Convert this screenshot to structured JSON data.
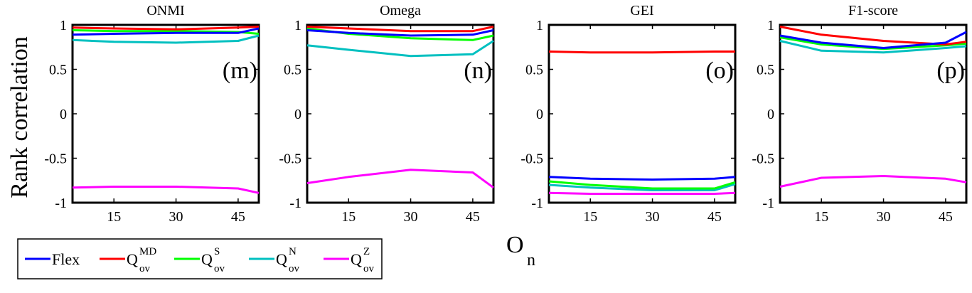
{
  "figure": {
    "ylabel": "Rank correlation",
    "xlabel_main": "O",
    "xlabel_sub": "n"
  },
  "legend": {
    "items": [
      {
        "label": "Flex",
        "sup": "",
        "sub": "",
        "color": "#0000ff"
      },
      {
        "label": "Q",
        "sup": "MD",
        "sub": "ov",
        "color": "#ff0000"
      },
      {
        "label": "Q",
        "sup": "S",
        "sub": "ov",
        "color": "#00ff00"
      },
      {
        "label": "Q",
        "sup": "N",
        "sub": "ov",
        "color": "#00c0c0"
      },
      {
        "label": "Q",
        "sup": "Z",
        "sub": "ov",
        "color": "#ff00ff"
      }
    ]
  },
  "chart_data": [
    {
      "type": "line",
      "title": "ONMI",
      "panel_label": "(m)",
      "x": [
        5,
        15,
        30,
        45,
        50
      ],
      "xticks": [
        "15",
        "30",
        "45"
      ],
      "yticks": [
        "1",
        "0.5",
        "0",
        "-0.5",
        "-1"
      ],
      "xlim": [
        5,
        50
      ],
      "ylim": [
        -1,
        1
      ],
      "series": [
        {
          "name": "Flex",
          "values": [
            0.89,
            0.9,
            0.91,
            0.91,
            0.96
          ]
        },
        {
          "name": "Q_ov^MD",
          "values": [
            0.97,
            0.96,
            0.95,
            0.97,
            0.98
          ]
        },
        {
          "name": "Q_ov^S",
          "values": [
            0.94,
            0.93,
            0.93,
            0.92,
            0.9
          ]
        },
        {
          "name": "Q_ov^N",
          "values": [
            0.83,
            0.81,
            0.8,
            0.82,
            0.88
          ]
        },
        {
          "name": "Q_ov^Z",
          "values": [
            -0.83,
            -0.82,
            -0.82,
            -0.84,
            -0.89
          ]
        }
      ]
    },
    {
      "type": "line",
      "title": "Omega",
      "panel_label": "(n)",
      "x": [
        5,
        15,
        30,
        45,
        50
      ],
      "xticks": [
        "15",
        "30",
        "45"
      ],
      "yticks": [
        "1",
        "0.5",
        "0",
        "-0.5",
        "-1"
      ],
      "xlim": [
        5,
        50
      ],
      "ylim": [
        -1,
        1
      ],
      "series": [
        {
          "name": "Flex",
          "values": [
            0.94,
            0.91,
            0.88,
            0.89,
            0.94
          ]
        },
        {
          "name": "Q_ov^MD",
          "values": [
            0.98,
            0.96,
            0.93,
            0.93,
            0.98
          ]
        },
        {
          "name": "Q_ov^S",
          "values": [
            0.96,
            0.9,
            0.85,
            0.83,
            0.88
          ]
        },
        {
          "name": "Q_ov^N",
          "values": [
            0.77,
            0.72,
            0.65,
            0.67,
            0.82
          ]
        },
        {
          "name": "Q_ov^Z",
          "values": [
            -0.78,
            -0.71,
            -0.63,
            -0.66,
            -0.83
          ]
        }
      ]
    },
    {
      "type": "line",
      "title": "GEI",
      "panel_label": "(o)",
      "x": [
        5,
        15,
        30,
        45,
        50
      ],
      "xticks": [
        "15",
        "30",
        "45"
      ],
      "yticks": [
        "1",
        "0.5",
        "0",
        "-0.5",
        "-1"
      ],
      "xlim": [
        5,
        50
      ],
      "ylim": [
        -1,
        1
      ],
      "series": [
        {
          "name": "Flex",
          "values": [
            -0.71,
            -0.73,
            -0.74,
            -0.73,
            -0.71
          ]
        },
        {
          "name": "Q_ov^MD",
          "values": [
            0.7,
            0.69,
            0.69,
            0.7,
            0.7
          ]
        },
        {
          "name": "Q_ov^S",
          "values": [
            -0.76,
            -0.8,
            -0.84,
            -0.84,
            -0.77
          ]
        },
        {
          "name": "Q_ov^N",
          "values": [
            -0.8,
            -0.83,
            -0.86,
            -0.86,
            -0.79
          ]
        },
        {
          "name": "Q_ov^Z",
          "values": [
            -0.89,
            -0.9,
            -0.9,
            -0.9,
            -0.89
          ]
        }
      ]
    },
    {
      "type": "line",
      "title": "F1-score",
      "panel_label": "(p)",
      "x": [
        5,
        15,
        30,
        45,
        50
      ],
      "xticks": [
        "15",
        "30",
        "45"
      ],
      "yticks": [
        "1",
        "0.5",
        "0",
        "-0.5",
        "-1"
      ],
      "xlim": [
        5,
        50
      ],
      "ylim": [
        -1,
        1
      ],
      "series": [
        {
          "name": "Flex",
          "values": [
            0.88,
            0.8,
            0.74,
            0.8,
            0.92
          ]
        },
        {
          "name": "Q_ov^MD",
          "values": [
            0.98,
            0.89,
            0.82,
            0.78,
            0.81
          ]
        },
        {
          "name": "Q_ov^S",
          "values": [
            0.86,
            0.78,
            0.73,
            0.77,
            0.79
          ]
        },
        {
          "name": "Q_ov^N",
          "values": [
            0.82,
            0.71,
            0.69,
            0.74,
            0.76
          ]
        },
        {
          "name": "Q_ov^Z",
          "values": [
            -0.82,
            -0.72,
            -0.7,
            -0.73,
            -0.77
          ]
        }
      ]
    }
  ]
}
